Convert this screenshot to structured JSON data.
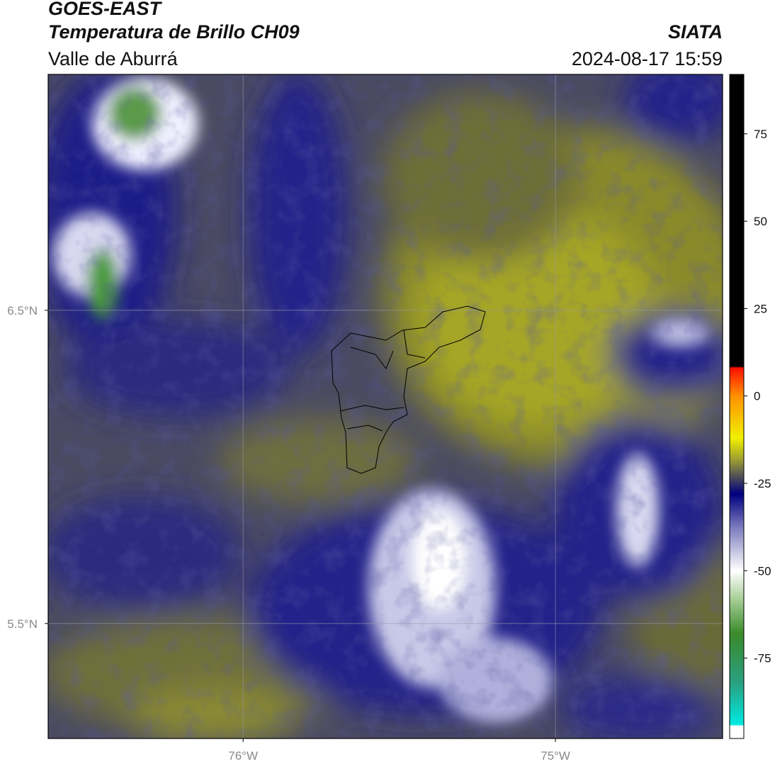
{
  "header": {
    "title": "GOES-EAST",
    "subtitle": "Temperatura de Brillo CH09",
    "region": "Valle de Aburrá",
    "source": "SIATA",
    "timestamp": "2024-08-17 15:59"
  },
  "chart_data": {
    "type": "map",
    "xlim": [
      -76.624,
      -74.465
    ],
    "ylim": [
      5.133,
      7.253
    ],
    "xticks": [
      {
        "value": -76,
        "label": "76°W"
      },
      {
        "value": -75,
        "label": "75°W"
      }
    ],
    "yticks": [
      {
        "value": 5.5,
        "label": "5.5°N"
      },
      {
        "value": 6.5,
        "label": "6.5°N"
      }
    ],
    "grid": true,
    "colorbar": {
      "lim": [
        -98,
        92
      ],
      "ticks": [
        -75,
        -50,
        -25,
        0,
        25,
        50,
        75
      ],
      "stops": [
        {
          "value": -98,
          "color": "#ffffff"
        },
        {
          "value": -94.5,
          "color": "#ffffff"
        },
        {
          "value": -94,
          "color": "#00e8e0"
        },
        {
          "value": -82,
          "color": "#2aa080"
        },
        {
          "value": -68,
          "color": "#3a8a2a"
        },
        {
          "value": -58,
          "color": "#a8d098"
        },
        {
          "value": -50,
          "color": "#ffffff"
        },
        {
          "value": -38,
          "color": "#8080c0"
        },
        {
          "value": -28,
          "color": "#000080"
        },
        {
          "value": -24,
          "color": "#404060"
        },
        {
          "value": -18,
          "color": "#a0a030"
        },
        {
          "value": -12,
          "color": "#f0f000"
        },
        {
          "value": 0,
          "color": "#ff9000"
        },
        {
          "value": 8,
          "color": "#ff1000"
        },
        {
          "value": 8.5,
          "color": "#000000"
        },
        {
          "value": 92,
          "color": "#000000"
        }
      ]
    }
  }
}
